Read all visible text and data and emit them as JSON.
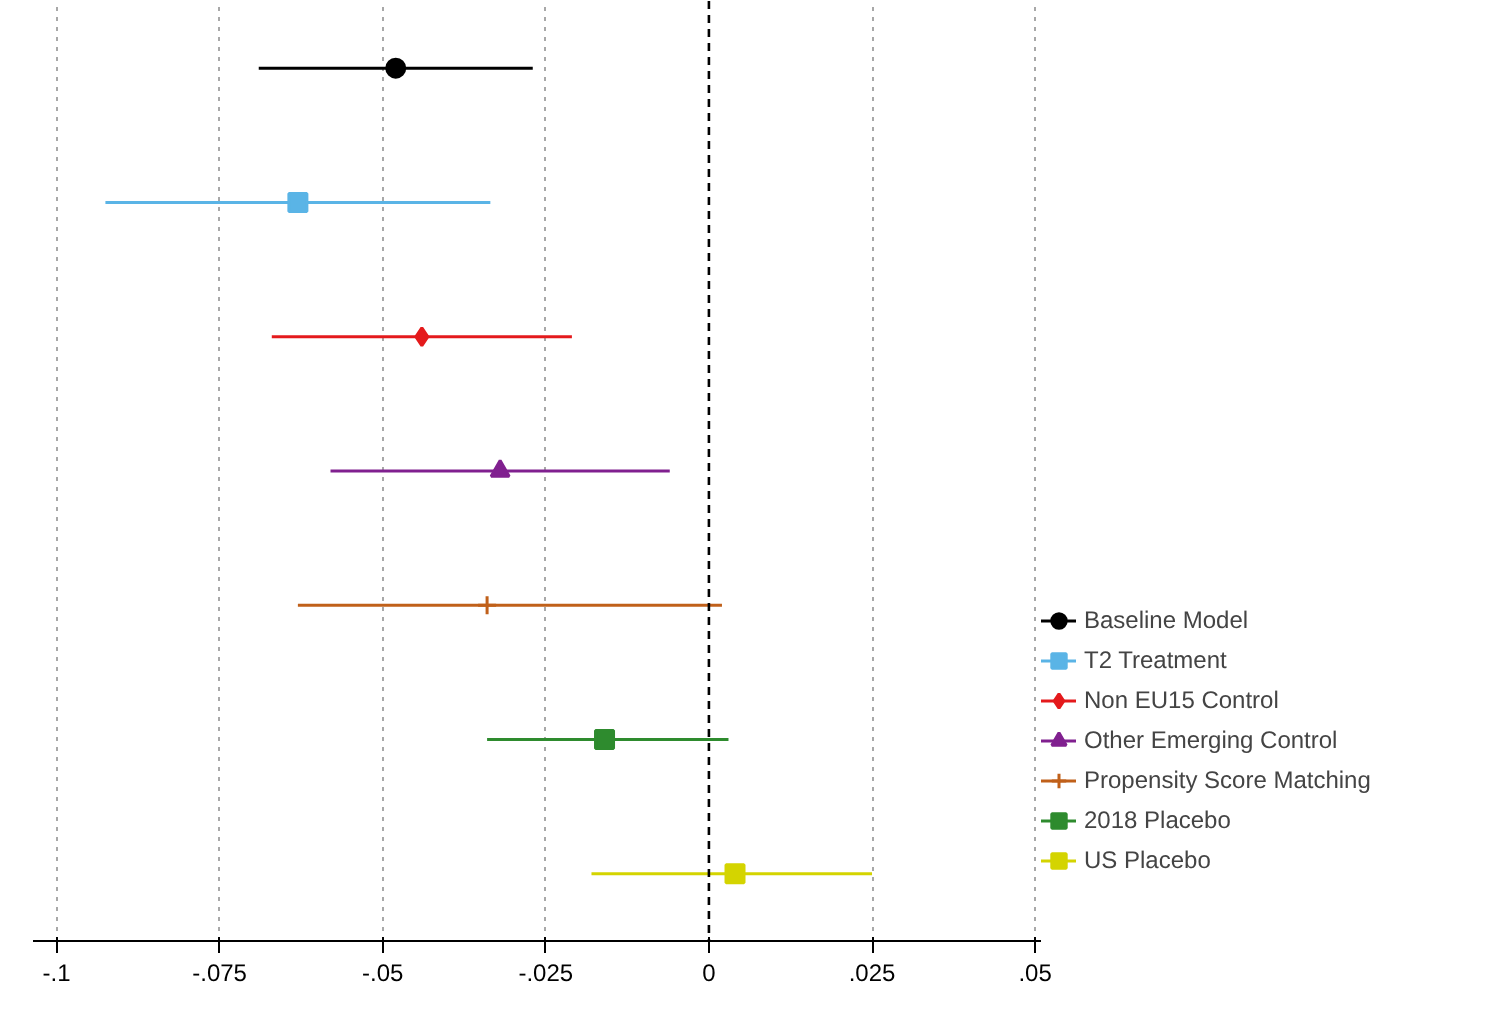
{
  "chart_data": {
    "type": "scatter",
    "orientation": "horizontal",
    "categories": [
      null,
      null,
      null,
      null,
      null,
      null,
      null
    ],
    "series": [
      {
        "name": "Baseline Model",
        "color": "#000000",
        "marker": "circle",
        "values": [
          -0.048,
          null,
          null,
          null,
          null,
          null,
          null
        ],
        "errors": [
          [
            -0.069,
            -0.027
          ],
          null,
          null,
          null,
          null,
          null,
          null
        ]
      },
      {
        "name": "T2 Treatment",
        "color": "#5ab4e6",
        "marker": "square",
        "values": [
          null,
          -0.063,
          null,
          null,
          null,
          null,
          null
        ],
        "errors": [
          null,
          [
            -0.0925,
            -0.0335
          ],
          null,
          null,
          null,
          null,
          null
        ]
      },
      {
        "name": "Non EU15 Control",
        "color": "#e41a1c",
        "marker": "diamond",
        "values": [
          null,
          null,
          -0.044,
          null,
          null,
          null,
          null
        ],
        "errors": [
          null,
          null,
          [
            -0.067,
            -0.021
          ],
          null,
          null,
          null,
          null
        ]
      },
      {
        "name": "Other Emerging Control",
        "color": "#80208f",
        "marker": "triangle",
        "values": [
          null,
          null,
          null,
          -0.032,
          null,
          null,
          null
        ],
        "errors": [
          null,
          null,
          null,
          [
            -0.058,
            -0.006
          ],
          null,
          null,
          null
        ]
      },
      {
        "name": "Propensity Score Matching",
        "color": "#c0601a",
        "marker": "cross",
        "values": [
          null,
          null,
          null,
          null,
          -0.034,
          null,
          null
        ],
        "errors": [
          null,
          null,
          null,
          null,
          [
            -0.063,
            0.002
          ],
          null,
          null
        ]
      },
      {
        "name": "2018 Placebo",
        "color": "#2e8b2e",
        "marker": "square",
        "values": [
          null,
          null,
          null,
          null,
          null,
          -0.016,
          null
        ],
        "errors": [
          null,
          null,
          null,
          null,
          null,
          [
            -0.034,
            0.003
          ],
          null
        ]
      },
      {
        "name": "US Placebo",
        "color": "#d4d400",
        "marker": "square",
        "values": [
          null,
          null,
          null,
          null,
          null,
          null,
          0.004
        ],
        "errors": [
          null,
          null,
          null,
          null,
          null,
          null,
          [
            -0.018,
            0.025
          ]
        ]
      }
    ],
    "xlim": [
      -0.1036,
      0.0509
    ],
    "xticks": [
      {
        "value": -0.1,
        "label": "-.1"
      },
      {
        "value": -0.075,
        "label": "-.075"
      },
      {
        "value": -0.05,
        "label": "-.05"
      },
      {
        "value": -0.025,
        "label": "-.025"
      },
      {
        "value": 0,
        "label": "0"
      },
      {
        "value": 0.025,
        "label": ".025"
      },
      {
        "value": 0.05,
        "label": ".05"
      }
    ],
    "tick_labels": "x",
    "grid": "x",
    "ref_lines": [
      {
        "axis": "x",
        "value": 0,
        "color": "#000000",
        "line_style": "dashed"
      }
    ],
    "legend": "right"
  }
}
